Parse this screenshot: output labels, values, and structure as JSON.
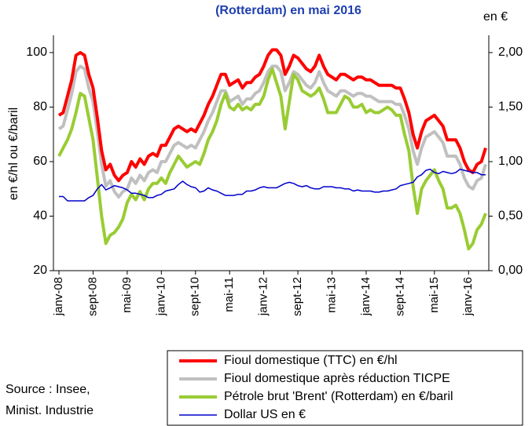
{
  "chart_data": {
    "type": "line",
    "title": "(Rotterdam) en mai 2016",
    "y_label": "en €/hl ou €/baril",
    "y2_label": "en €",
    "source": [
      "Source : Insee,",
      "Minist. Industrie"
    ],
    "categories": [
      "janv-08",
      null,
      null,
      null,
      null,
      null,
      null,
      null,
      "sept-08",
      null,
      null,
      null,
      null,
      null,
      null,
      null,
      "mai-09",
      null,
      null,
      null,
      null,
      null,
      null,
      null,
      "janv-10",
      null,
      null,
      null,
      null,
      null,
      null,
      null,
      "sept-10",
      null,
      null,
      null,
      null,
      null,
      null,
      null,
      "mai-11",
      null,
      null,
      null,
      null,
      null,
      null,
      null,
      "janv-12",
      null,
      null,
      null,
      null,
      null,
      null,
      null,
      "sept-12",
      null,
      null,
      null,
      null,
      null,
      null,
      null,
      "mai-13",
      null,
      null,
      null,
      null,
      null,
      null,
      null,
      "janv-14",
      null,
      null,
      null,
      null,
      null,
      null,
      null,
      "sept-14",
      null,
      null,
      null,
      null,
      null,
      null,
      null,
      "mai-15",
      null,
      null,
      null,
      null,
      null,
      null,
      null,
      "janv-16",
      null,
      null,
      null,
      null
    ],
    "ylim": [
      20,
      100
    ],
    "yticks": [
      20,
      40,
      60,
      80,
      100
    ],
    "y2lim": [
      0,
      2
    ],
    "y2ticks": [
      {
        "value": 0,
        "label": "0,00"
      },
      {
        "value": 0.5,
        "label": "0,50"
      },
      {
        "value": 1,
        "label": "1,00"
      },
      {
        "value": 1.5,
        "label": "1,50"
      },
      {
        "value": 2,
        "label": "2,00"
      }
    ],
    "series": [
      {
        "name": "Fioul domestique (TTC) en €/hl",
        "color": "#ff0000",
        "width": 4,
        "values": [
          77,
          78,
          84,
          90,
          99,
          100,
          99,
          92,
          87,
          76,
          64,
          57,
          59,
          55,
          53,
          55,
          56,
          60,
          58,
          61,
          59,
          62,
          63,
          62,
          66,
          66,
          69,
          72,
          73,
          72,
          71,
          72,
          71,
          74,
          77,
          81,
          84,
          88,
          92,
          92,
          88,
          89,
          90,
          87,
          89,
          89,
          91,
          92,
          95,
          99,
          101,
          101,
          99,
          92,
          95,
          99,
          98,
          96,
          94,
          93,
          95,
          99,
          95,
          92,
          91,
          90,
          92,
          92,
          91,
          90,
          91,
          91,
          90,
          90,
          89,
          88,
          88,
          88,
          88,
          87,
          87,
          83,
          78,
          70,
          65,
          71,
          75,
          76,
          77,
          75,
          73,
          68,
          68,
          68,
          65,
          60,
          57,
          56,
          59,
          60,
          65
        ]
      },
      {
        "name": "Fioul domestique après réduction TICPE",
        "color": "#c0c0c0",
        "width": 4,
        "values": [
          72,
          73,
          79,
          85,
          93,
          95,
          94,
          87,
          82,
          71,
          59,
          51,
          53,
          49,
          47,
          49,
          50,
          54,
          52,
          55,
          53,
          56,
          57,
          56,
          60,
          60,
          63,
          66,
          67,
          66,
          65,
          66,
          65,
          68,
          71,
          75,
          78,
          82,
          86,
          86,
          82,
          83,
          84,
          81,
          83,
          83,
          85,
          86,
          89,
          93,
          95,
          95,
          93,
          86,
          89,
          93,
          92,
          90,
          88,
          87,
          89,
          93,
          89,
          86,
          85,
          84,
          86,
          86,
          85,
          84,
          85,
          85,
          84,
          84,
          83,
          82,
          82,
          82,
          82,
          81,
          81,
          77,
          72,
          64,
          59,
          65,
          69,
          70,
          71,
          69,
          67,
          62,
          62,
          62,
          59,
          54,
          51,
          50,
          53,
          54,
          59
        ]
      },
      {
        "name": "Pétrole brut 'Brent' (Rotterdam) en €/baril",
        "color": "#99cc33",
        "width": 4,
        "values": [
          62,
          65,
          68,
          72,
          78,
          85,
          84,
          76,
          68,
          54,
          40,
          30,
          33,
          34,
          36,
          39,
          45,
          48,
          46,
          49,
          46,
          50,
          52,
          52,
          54,
          52,
          56,
          59,
          62,
          60,
          58,
          59,
          60,
          59,
          63,
          68,
          71,
          75,
          81,
          85,
          80,
          79,
          81,
          79,
          80,
          79,
          81,
          81,
          84,
          90,
          94,
          89,
          84,
          72,
          82,
          92,
          90,
          86,
          85,
          84,
          85,
          87,
          83,
          78,
          78,
          78,
          81,
          84,
          83,
          80,
          80,
          81,
          78,
          79,
          78,
          78,
          79,
          80,
          79,
          77,
          77,
          70,
          64,
          51,
          41,
          50,
          53,
          55,
          57,
          53,
          50,
          43,
          43,
          44,
          41,
          35,
          28,
          30,
          35,
          37,
          41
        ]
      },
      {
        "name": "Dollar US en €",
        "color": "#0000cc",
        "width": 1.5,
        "axis": "y2",
        "values": [
          0.68,
          0.68,
          0.64,
          0.64,
          0.64,
          0.64,
          0.64,
          0.67,
          0.69,
          0.75,
          0.79,
          0.74,
          0.76,
          0.78,
          0.77,
          0.76,
          0.74,
          0.71,
          0.71,
          0.7,
          0.69,
          0.67,
          0.67,
          0.69,
          0.7,
          0.73,
          0.74,
          0.75,
          0.79,
          0.82,
          0.79,
          0.77,
          0.76,
          0.72,
          0.73,
          0.76,
          0.74,
          0.73,
          0.71,
          0.69,
          0.69,
          0.69,
          0.7,
          0.7,
          0.73,
          0.73,
          0.74,
          0.76,
          0.77,
          0.76,
          0.76,
          0.76,
          0.78,
          0.8,
          0.81,
          0.8,
          0.78,
          0.77,
          0.78,
          0.76,
          0.75,
          0.75,
          0.77,
          0.77,
          0.77,
          0.76,
          0.76,
          0.75,
          0.75,
          0.73,
          0.74,
          0.73,
          0.73,
          0.73,
          0.72,
          0.72,
          0.73,
          0.73,
          0.74,
          0.75,
          0.78,
          0.79,
          0.8,
          0.81,
          0.86,
          0.88,
          0.92,
          0.93,
          0.9,
          0.89,
          0.91,
          0.9,
          0.89,
          0.9,
          0.93,
          0.92,
          0.91,
          0.9,
          0.9,
          0.88,
          0.88
        ]
      }
    ]
  }
}
